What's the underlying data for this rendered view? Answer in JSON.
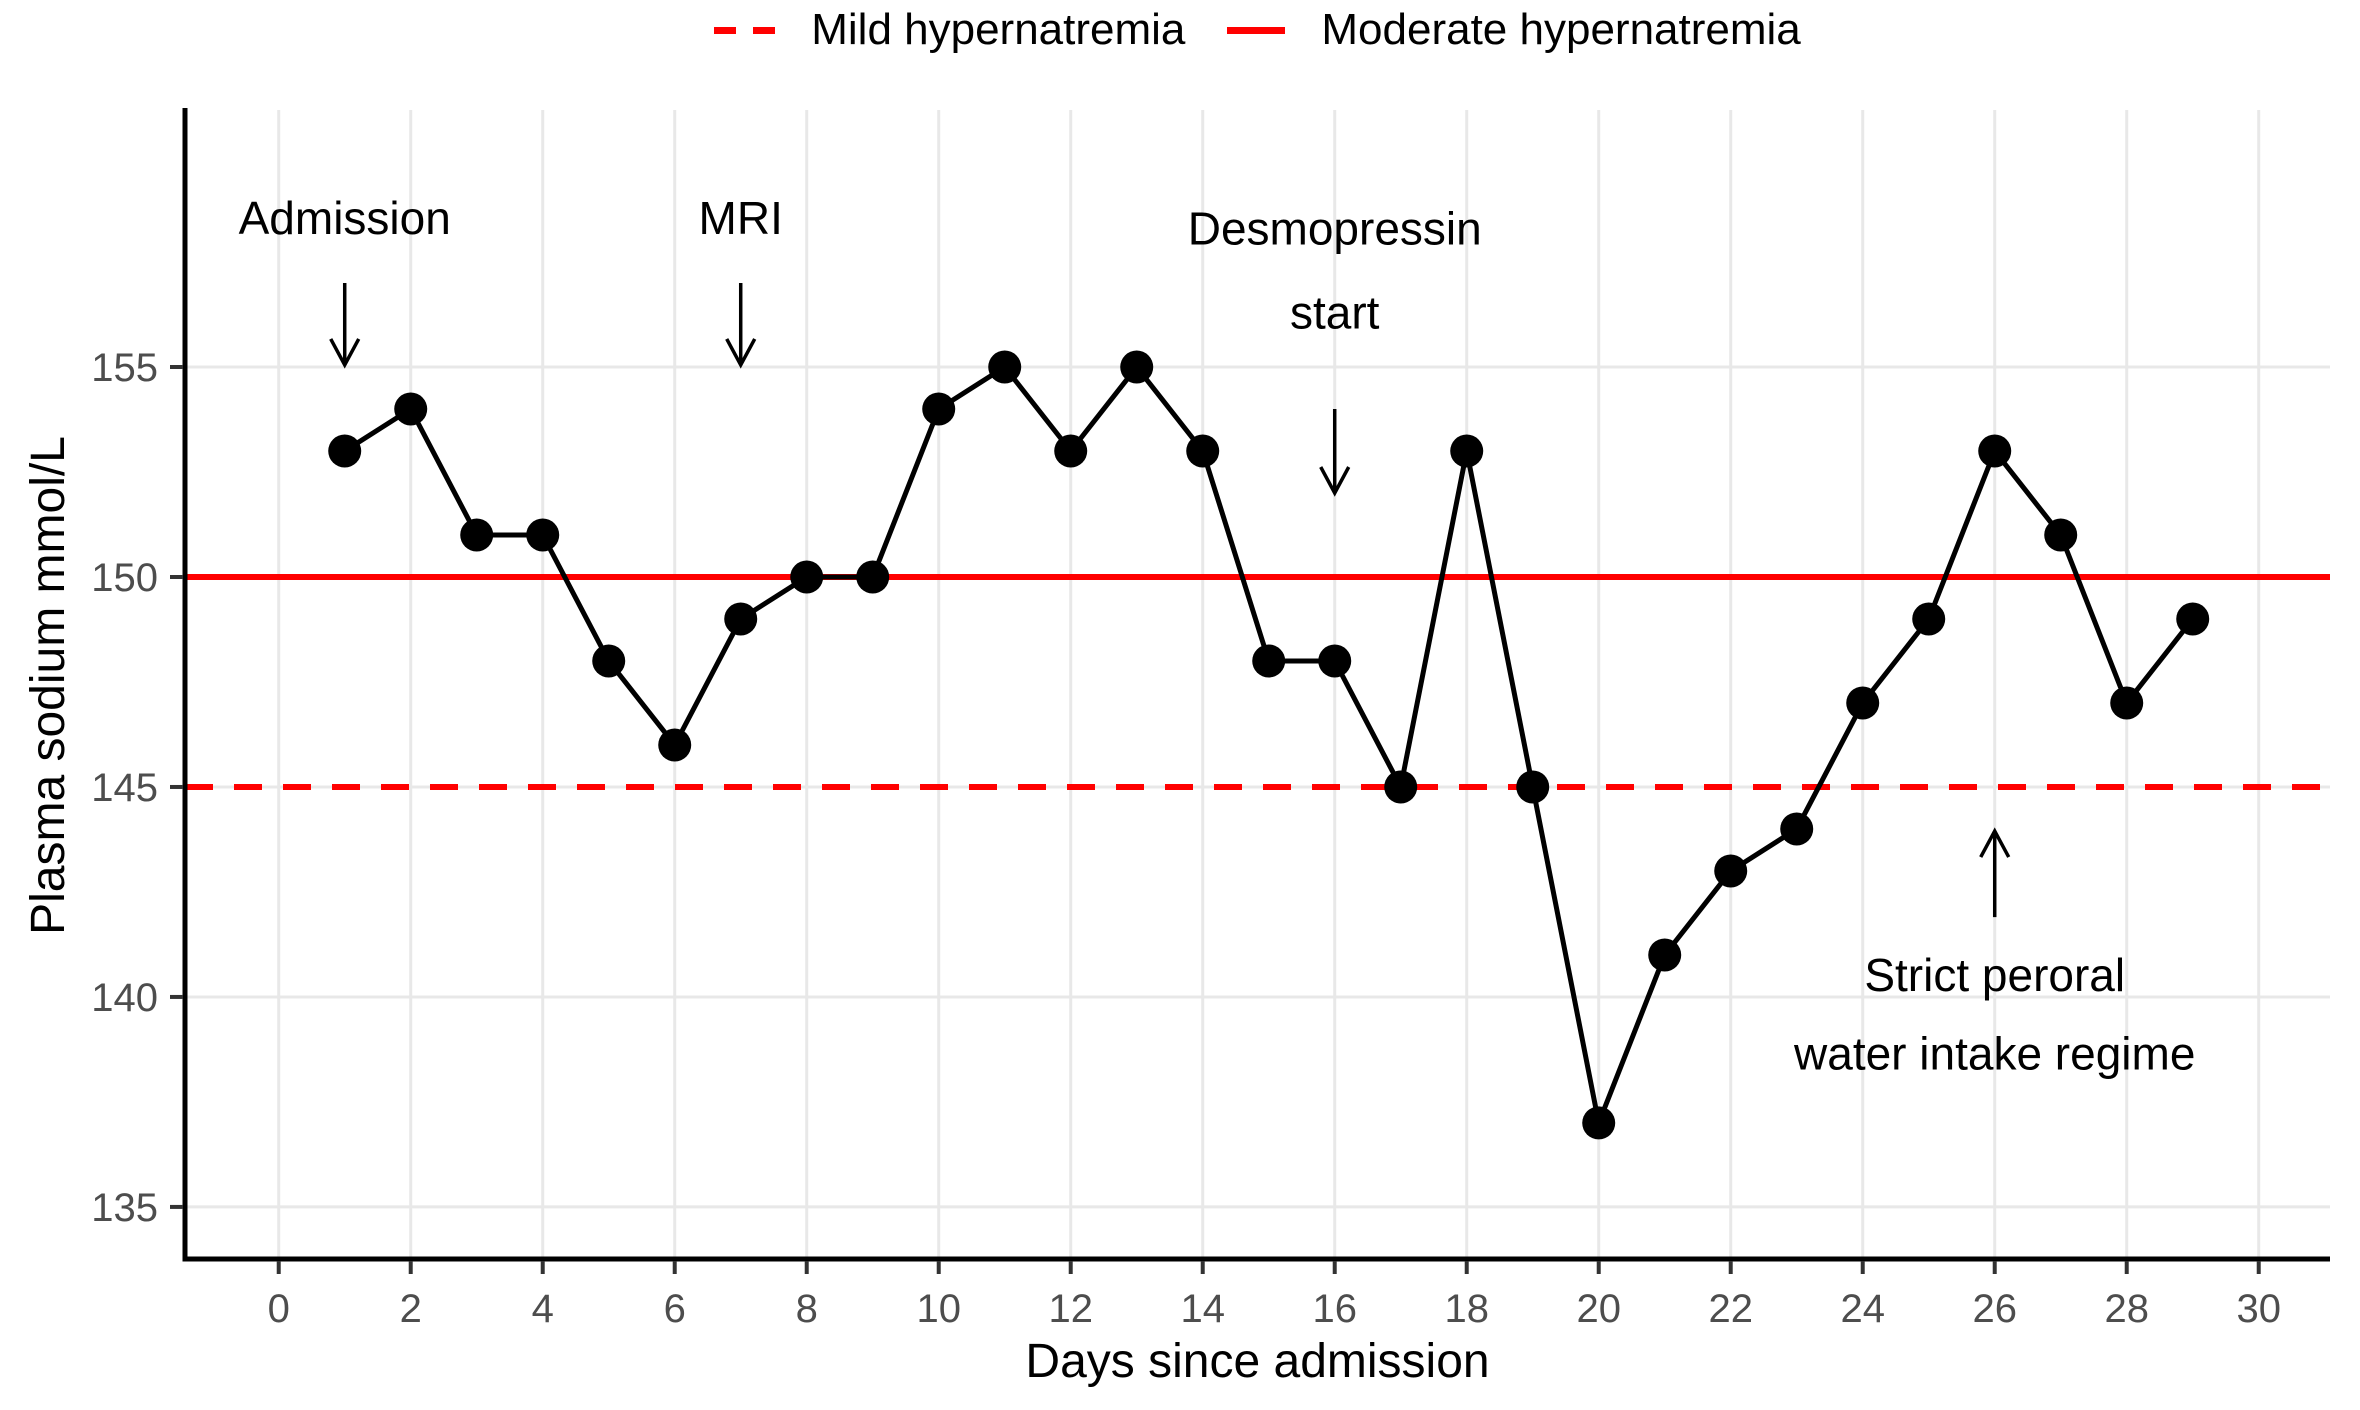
{
  "colors": {
    "reference": "#FF0000",
    "series": "#000000",
    "grid": "#E8E8E8",
    "axis_text": "#4D4D4D",
    "axis_line": "#000000"
  },
  "legend": {
    "items": [
      {
        "label": "Mild hypernatremia",
        "style": "dashed"
      },
      {
        "label": "Moderate hypernatremia",
        "style": "solid"
      }
    ]
  },
  "chart_data": {
    "type": "line",
    "title": "",
    "xlabel": "Days since admission",
    "ylabel": "Plasma sodium mmol/L",
    "series": [
      {
        "name": "Plasma sodium",
        "x": [
          1,
          2,
          3,
          4,
          5,
          6,
          7,
          8,
          9,
          10,
          11,
          12,
          13,
          14,
          15,
          16,
          17,
          18,
          19,
          20,
          21,
          22,
          23,
          24,
          25,
          26,
          27,
          28,
          29
        ],
        "values": [
          153,
          154,
          151,
          151,
          148,
          146,
          149,
          150,
          150,
          154,
          155,
          153,
          155,
          153,
          148,
          148,
          145,
          153,
          145,
          137,
          141,
          143,
          144,
          147,
          149,
          153,
          151,
          147,
          149
        ]
      }
    ],
    "xlim": [
      -1.42,
      31.08
    ],
    "ylim": [
      133.76,
      161.12
    ],
    "xticks": [
      0,
      2,
      4,
      6,
      8,
      10,
      12,
      14,
      16,
      18,
      20,
      22,
      24,
      26,
      28,
      30
    ],
    "yticks": [
      135,
      140,
      145,
      150,
      155
    ],
    "grid": "major-only",
    "legend_position": "top",
    "reference_lines": [
      {
        "id": "mild-hypernatremia",
        "label": "Mild hypernatremia",
        "value": 145,
        "style": "dashed",
        "color": "#FF0000"
      },
      {
        "id": "moderate-hypernatremia",
        "label": "Moderate hypernatremia",
        "value": 150,
        "style": "solid",
        "color": "#FF0000"
      }
    ],
    "annotations": [
      {
        "id": "admission",
        "lines": [
          "Admission"
        ],
        "x": 1,
        "text_y": 158.55,
        "line_spacing": 2.0,
        "arrow": {
          "x": 1,
          "y_from": 157.0,
          "y_to": 155.05,
          "direction": "down"
        }
      },
      {
        "id": "mri",
        "lines": [
          "MRI"
        ],
        "x": 7,
        "text_y": 158.55,
        "line_spacing": 2.0,
        "arrow": {
          "x": 7,
          "y_from": 157.0,
          "y_to": 155.05,
          "direction": "down"
        }
      },
      {
        "id": "desmopressin-start",
        "lines": [
          "Desmopressin",
          "start"
        ],
        "x": 16,
        "text_y": 158.3,
        "line_spacing": 2.0,
        "arrow": {
          "x": 16,
          "y_from": 154.0,
          "y_to": 152.0,
          "direction": "down"
        }
      },
      {
        "id": "strict-peroral-water-intake-regime",
        "lines": [
          "Strict peroral",
          "water intake regime"
        ],
        "x": 26,
        "text_y": 140.52,
        "line_spacing": 1.86,
        "arrow": {
          "x": 26,
          "y_from": 141.9,
          "y_to": 143.95,
          "direction": "up"
        }
      }
    ]
  }
}
